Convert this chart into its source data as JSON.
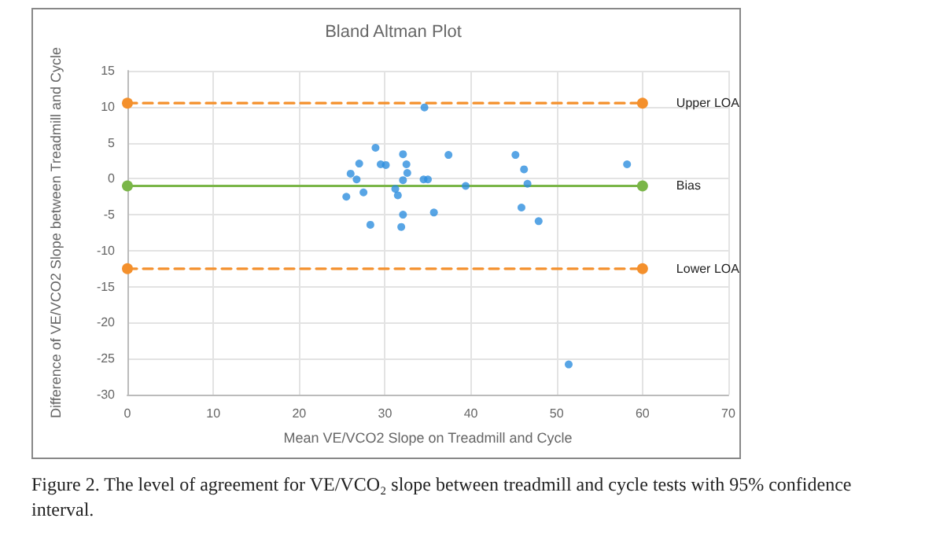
{
  "chart_data": {
    "type": "scatter",
    "title": "Bland Altman Plot",
    "xlabel": "Mean VE/VCO2 Slope on Treadmill and Cycle",
    "ylabel": "Difference of VE/VCO2 Slope between Treadmill and Cycle",
    "annotations": [
      "Figure 2. The level of agreement for VE/VCO₂ slope between treadmill and cycle tests with 95% confidence interval."
    ],
    "xlim": [
      0,
      70
    ],
    "xticks": [
      0,
      10,
      20,
      30,
      40,
      50,
      60,
      70
    ],
    "ylim": [
      -30,
      15
    ],
    "yticks": [
      -30,
      -25,
      -20,
      -15,
      -10,
      -5,
      0,
      5,
      10,
      15
    ],
    "grid": true,
    "marker": "circle",
    "series": [
      {
        "color": "#2e8ede",
        "x": [
          25.5,
          26.0,
          26.7,
          27.0,
          27.5,
          28.3,
          28.9,
          29.5,
          30.1,
          31.2,
          31.5,
          31.9,
          32.1,
          32.1,
          32.1,
          32.5,
          32.6,
          34.6,
          34.5,
          35.0,
          35.7,
          37.4,
          39.4,
          45.2,
          46.2,
          46.6,
          45.9,
          47.9,
          58.2,
          51.4
        ],
        "values": [
          -2.5,
          0.7,
          -0.1,
          2.1,
          -1.9,
          -6.4,
          4.3,
          2.0,
          1.9,
          -1.4,
          -2.3,
          -6.7,
          -5.0,
          3.4,
          -0.2,
          2.0,
          0.8,
          9.9,
          -0.1,
          -0.1,
          -4.7,
          3.3,
          -1.0,
          3.3,
          1.3,
          -0.7,
          -4.0,
          -5.9,
          2.0,
          -25.8
        ]
      },
      {
        "type": "line",
        "name": "Upper LOA",
        "color": "#f4902c",
        "line_style": "dashed",
        "x": [
          0,
          60
        ],
        "values": [
          10.5,
          10.5
        ]
      },
      {
        "type": "line",
        "name": "Bias",
        "color": "#7ab648",
        "line_style": "solid",
        "x": [
          0,
          60
        ],
        "values": [
          -1,
          -1
        ]
      },
      {
        "type": "line",
        "name": "Lower LOA",
        "color": "#f4902c",
        "line_style": "dashed",
        "x": [
          0,
          60
        ],
        "values": [
          -12.5,
          -12.5
        ]
      }
    ]
  }
}
